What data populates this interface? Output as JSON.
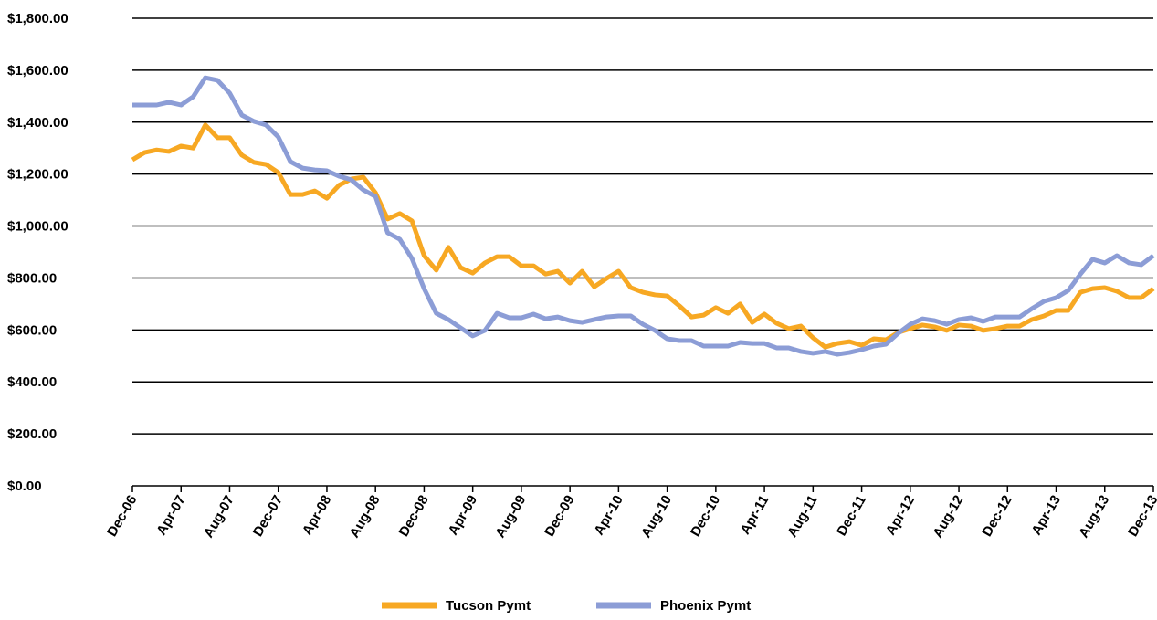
{
  "chart_data": {
    "type": "line",
    "categories": [
      "Dec-06",
      null,
      null,
      null,
      "Apr-07",
      null,
      null,
      null,
      "Aug-07",
      null,
      null,
      null,
      "Dec-07",
      null,
      null,
      null,
      "Apr-08",
      null,
      null,
      null,
      "Aug-08",
      null,
      null,
      null,
      "Dec-08",
      null,
      null,
      null,
      "Apr-09",
      null,
      null,
      null,
      "Aug-09",
      null,
      null,
      null,
      "Dec-09",
      null,
      null,
      null,
      "Apr-10",
      null,
      null,
      null,
      "Aug-10",
      null,
      null,
      null,
      "Dec-10",
      null,
      null,
      null,
      "Apr-11",
      null,
      null,
      null,
      "Aug-11",
      null,
      null,
      null,
      "Dec-11",
      null,
      null,
      null,
      "Apr-12",
      null,
      null,
      null,
      "Aug-12",
      null,
      null,
      null,
      "Dec-12",
      null,
      null,
      null,
      "Apr-13",
      null,
      null,
      null,
      "Aug-13",
      null,
      null,
      null,
      "Dec-13"
    ],
    "series": [
      {
        "name": "Tucson Pymt",
        "color": "#f7a823",
        "values": [
          1255,
          1283,
          1293,
          1287,
          1308,
          1300,
          1389,
          1340,
          1340,
          1273,
          1245,
          1237,
          1206,
          1121,
          1121,
          1135,
          1107,
          1157,
          1181,
          1188,
          1128,
          1027,
          1048,
          1020,
          886,
          830,
          918,
          840,
          819,
          858,
          882,
          882,
          847,
          847,
          815,
          826,
          780,
          826,
          766,
          798,
          826,
          763,
          745,
          735,
          731,
          693,
          650,
          657,
          686,
          664,
          700,
          629,
          661,
          626,
          605,
          615,
          570,
          534,
          548,
          555,
          541,
          566,
          562,
          590,
          605,
          619,
          612,
          598,
          619,
          615,
          598,
          605,
          615,
          615,
          640,
          654,
          675,
          675,
          745,
          759,
          763,
          749,
          724,
          724,
          759
        ]
      },
      {
        "name": "Phoenix Pymt",
        "color": "#8c9dd6",
        "values": [
          1466,
          1466,
          1466,
          1477,
          1466,
          1498,
          1571,
          1561,
          1512,
          1427,
          1403,
          1389,
          1343,
          1248,
          1223,
          1216,
          1213,
          1192,
          1178,
          1139,
          1114,
          974,
          949,
          875,
          759,
          664,
          640,
          608,
          577,
          598,
          664,
          647,
          647,
          661,
          643,
          650,
          636,
          629,
          640,
          650,
          654,
          654,
          622,
          598,
          566,
          559,
          559,
          538,
          538,
          538,
          552,
          548,
          548,
          531,
          531,
          517,
          510,
          517,
          506,
          513,
          524,
          538,
          545,
          587,
          622,
          643,
          636,
          622,
          640,
          647,
          633,
          650,
          650,
          650,
          682,
          710,
          724,
          752,
          815,
          872,
          858,
          886,
          858,
          851,
          886
        ]
      }
    ],
    "ylim": [
      0,
      1800
    ],
    "yticks": [
      {
        "value": 0,
        "label": "$0.00"
      },
      {
        "value": 200,
        "label": "$200.00"
      },
      {
        "value": 400,
        "label": "$400.00"
      },
      {
        "value": 600,
        "label": "$600.00"
      },
      {
        "value": 800,
        "label": "$800.00"
      },
      {
        "value": 1000,
        "label": "$1,000.00"
      },
      {
        "value": 1200,
        "label": "$1,200.00"
      },
      {
        "value": 1400,
        "label": "$1,400.00"
      },
      {
        "value": 1600,
        "label": "$1,600.00"
      },
      {
        "value": 1800,
        "label": "$1,800.00"
      }
    ],
    "grid": true,
    "legend": "bottom"
  }
}
